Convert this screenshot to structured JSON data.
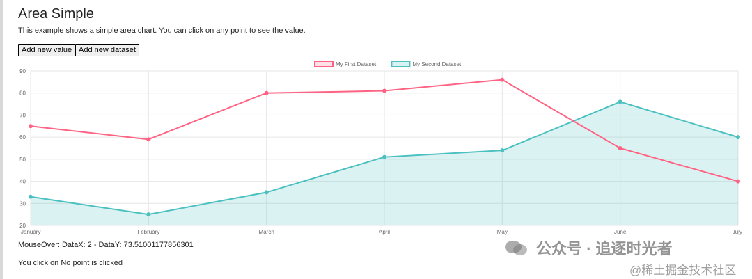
{
  "page": {
    "title": "Area Simple",
    "description": "This example shows a simple area chart. You can click on any point to see the value.",
    "buttons": {
      "add_value": "Add new value",
      "add_dataset": "Add new dataset"
    },
    "mouseover_text": "MouseOver: DataX: 2 - DataY: 73.51001177856301",
    "click_text": "You click on No point is clicked"
  },
  "watermark": {
    "line1": "公众号 · 追逐时光者",
    "line2": "@稀土掘金技术社区"
  },
  "chart_data": {
    "type": "area",
    "categories": [
      "January",
      "February",
      "March",
      "April",
      "May",
      "June",
      "July"
    ],
    "ylim": [
      20,
      90
    ],
    "yticks": [
      20,
      30,
      40,
      50,
      60,
      70,
      80,
      90
    ],
    "grid": true,
    "legend_position": "top",
    "series": [
      {
        "name": "My First Dataset",
        "values": [
          65,
          59,
          80,
          81,
          86,
          55,
          40
        ],
        "color": "#ff6384",
        "fill": false
      },
      {
        "name": "My Second Dataset",
        "values": [
          33,
          25,
          35,
          51,
          54,
          76,
          60
        ],
        "color": "#4bc0c0",
        "fill": true
      }
    ]
  }
}
